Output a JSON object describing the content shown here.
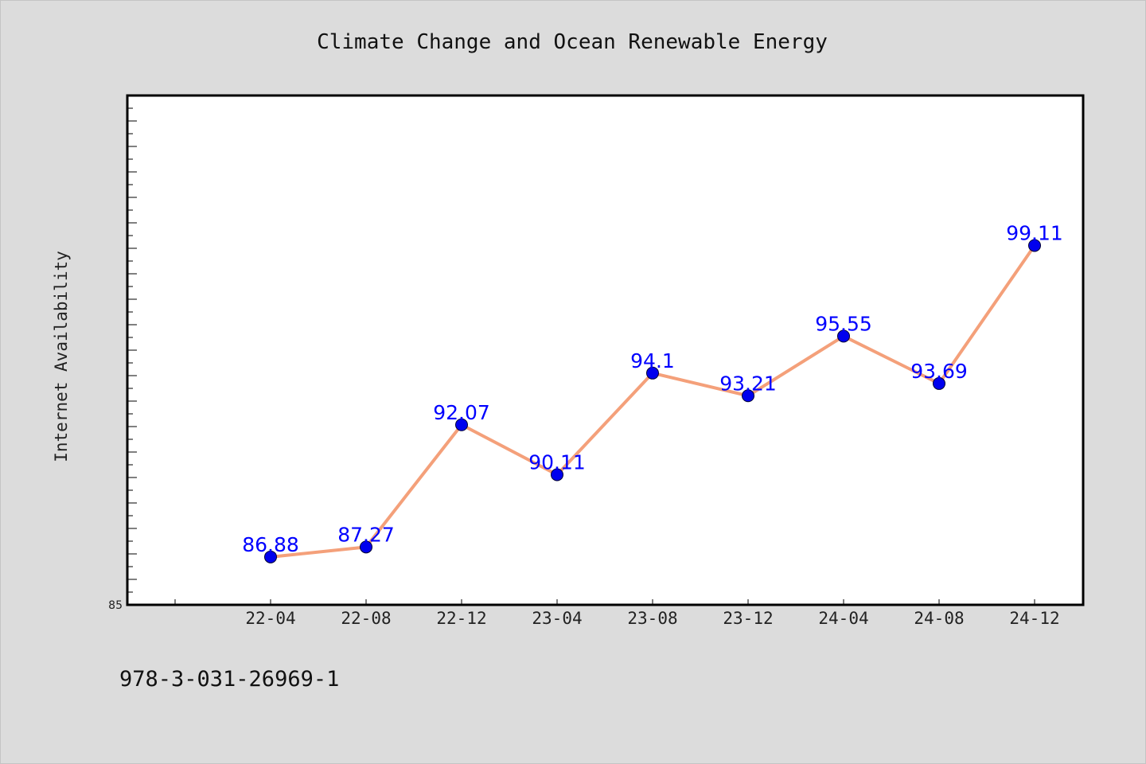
{
  "chart_data": {
    "type": "line",
    "title": "Climate Change and Ocean Renewable Energy",
    "xlabel": "",
    "ylabel": "Internet Availability",
    "categories": [
      "22-04",
      "22-08",
      "22-12",
      "23-04",
      "23-08",
      "23-12",
      "24-04",
      "24-08",
      "24-12"
    ],
    "series": [
      {
        "values": [
          86.88,
          87.27,
          92.07,
          90.11,
          94.1,
          93.21,
          95.55,
          93.69,
          99.11
        ]
      }
    ],
    "data_labels": [
      "86.88",
      "87.27",
      "92.07",
      "90.11",
      "94.1",
      "93.21",
      "95.55",
      "93.69",
      "99.11"
    ],
    "ylim": [
      85,
      105
    ],
    "y_tick_labels": [
      "85"
    ],
    "grid": false,
    "colors": {
      "line": "#f4a07a",
      "marker": "#0000ee",
      "label": "#0000ff",
      "plot_bg": "#ffffff",
      "page_bg": "#dcdcdc"
    }
  },
  "footer": {
    "isbn": "978-3-031-26969-1"
  }
}
